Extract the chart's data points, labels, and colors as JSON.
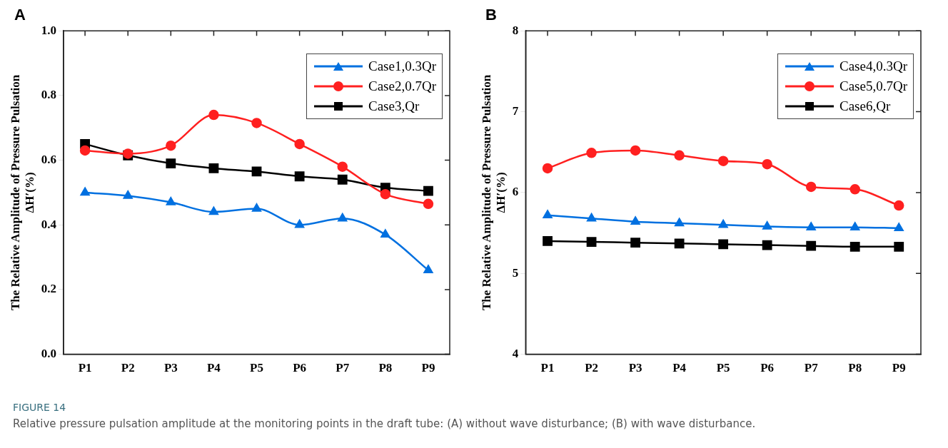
{
  "chart_data": [
    {
      "type": "line",
      "ylabel": "The Relative Amplitude of Pressure Pulsation\nΔH′(%)",
      "categories": [
        "P1",
        "P2",
        "P3",
        "P4",
        "P5",
        "P6",
        "P7",
        "P8",
        "P9"
      ],
      "ylim": [
        0,
        1
      ],
      "yticks": [
        {
          "value": 0,
          "label": "0.0"
        },
        0.2,
        0.4,
        0.6,
        0.8,
        {
          "value": 1,
          "label": "1.0"
        }
      ],
      "grid": false,
      "legend": "top right",
      "annotations": [
        "A",
        "FIGURE 14",
        "Relative pressure pulsation amplitude at the monitoring points in the draft tube: (A) without wave disturbance; (B) with wave disturbance."
      ],
      "series": [
        {
          "name": "Case1,0.3Qr",
          "color": "#0070e0",
          "marker": "triangle",
          "values": [
            0.5,
            0.49,
            0.47,
            0.44,
            0.45,
            0.4,
            0.42,
            0.37,
            0.26
          ]
        },
        {
          "name": "Case2,0.7Qr",
          "color": "#ff2020",
          "marker": "circle",
          "values": [
            0.63,
            0.62,
            0.645,
            0.74,
            0.715,
            0.65,
            0.58,
            0.495,
            0.465
          ]
        },
        {
          "name": "Case3,Qr",
          "color": "#000000",
          "marker": "square",
          "values": [
            0.65,
            0.615,
            0.59,
            0.575,
            0.565,
            0.55,
            0.54,
            0.515,
            0.505
          ]
        }
      ]
    },
    {
      "type": "line",
      "ylabel": "The Relative Amplitude of Pressure Pulsation\nΔH′(%)",
      "categories": [
        "P1",
        "P2",
        "P3",
        "P4",
        "P5",
        "P6",
        "P7",
        "P8",
        "P9"
      ],
      "ylim": [
        4,
        8
      ],
      "yticks": [
        4,
        5,
        6,
        7,
        8
      ],
      "grid": false,
      "legend": "top right",
      "annotations": [
        "B"
      ],
      "series": [
        {
          "name": "Case4,0.3Qr",
          "color": "#0070e0",
          "marker": "triangle",
          "values": [
            5.72,
            5.68,
            5.64,
            5.62,
            5.6,
            5.58,
            5.57,
            5.57,
            5.56
          ]
        },
        {
          "name": "Case5,0.7Qr",
          "color": "#ff2020",
          "marker": "circle",
          "values": [
            6.3,
            6.49,
            6.52,
            6.46,
            6.39,
            6.35,
            6.07,
            6.04,
            5.84
          ]
        },
        {
          "name": "Case6,Qr",
          "color": "#000000",
          "marker": "square",
          "values": [
            5.4,
            5.39,
            5.38,
            5.37,
            5.36,
            5.35,
            5.34,
            5.33,
            5.33
          ]
        }
      ]
    }
  ]
}
